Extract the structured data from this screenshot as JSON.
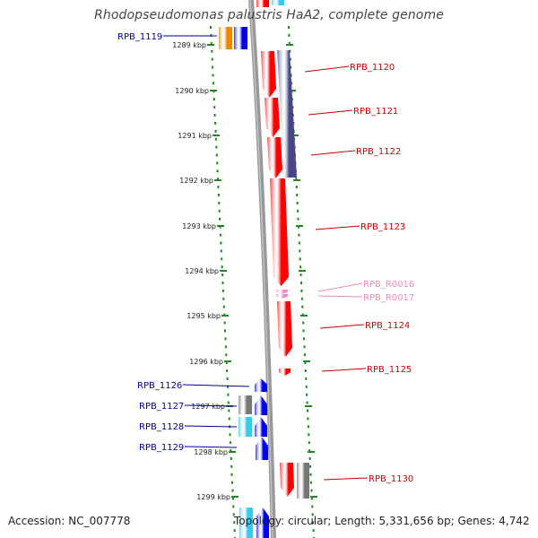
{
  "title": "Rhodopseudomonas palustris HaA2, complete genome",
  "footer": {
    "accession": "Accession: NC_007778",
    "summary": "Topology: circular; Length: 5,331,656 bp; Genes: 4,742"
  },
  "colors": {
    "forward_label": "#cc0000",
    "reverse_label": "#000099",
    "rna_label": "#ee88bb",
    "cds": "#ff0000",
    "cds_reverse": "#0000ee",
    "hypothetical": "#474787",
    "grey_feature": "#777777",
    "cyan_feature": "#33ccee",
    "orange_feature": "#ee8800",
    "rna_feature": "#ee88cc",
    "backbone": "#999999",
    "tick": "#228822"
  },
  "scale": {
    "unit": "kbp",
    "ticks": [
      "1289 kbp",
      "1290 kbp",
      "1291 kbp",
      "1292 kbp",
      "1293 kbp",
      "1294 kbp",
      "1295 kbp",
      "1296 kbp",
      "1297 kbp",
      "1298 kbp",
      "1299 kbp"
    ]
  },
  "genes": [
    {
      "label": "RPB_1119",
      "side": "left",
      "type": "reverse"
    },
    {
      "label": "RPB_1120",
      "side": "right",
      "type": "forward"
    },
    {
      "label": "RPB_1121",
      "side": "right",
      "type": "forward"
    },
    {
      "label": "RPB_1122",
      "side": "right",
      "type": "forward"
    },
    {
      "label": "RPB_1123",
      "side": "right",
      "type": "forward"
    },
    {
      "label": "RPB_R0016",
      "side": "right",
      "type": "rna"
    },
    {
      "label": "RPB_R0017",
      "side": "right",
      "type": "rna"
    },
    {
      "label": "RPB_1124",
      "side": "right",
      "type": "forward"
    },
    {
      "label": "RPB_1125",
      "side": "right",
      "type": "forward"
    },
    {
      "label": "RPB_1126",
      "side": "left",
      "type": "reverse"
    },
    {
      "label": "RPB_1127",
      "side": "left",
      "type": "reverse"
    },
    {
      "label": "RPB_1128",
      "side": "left",
      "type": "reverse"
    },
    {
      "label": "RPB_1129",
      "side": "left",
      "type": "reverse"
    },
    {
      "label": "RPB_1130",
      "side": "right",
      "type": "forward"
    }
  ]
}
